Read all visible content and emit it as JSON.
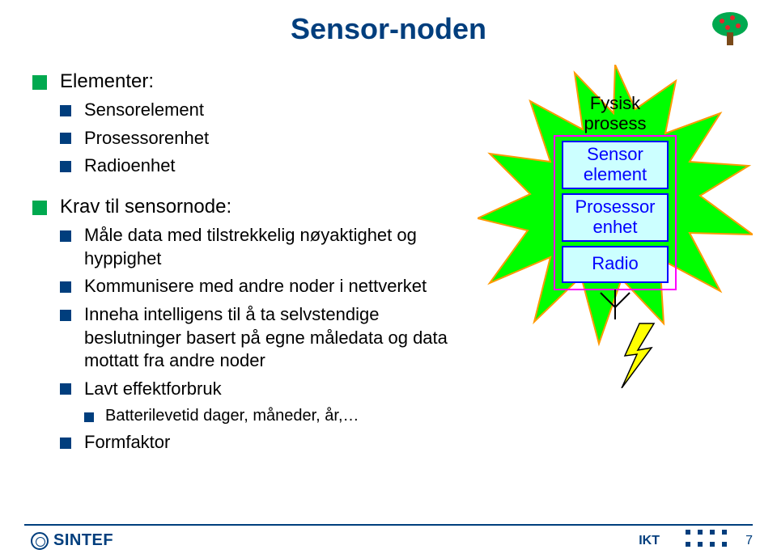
{
  "colors": {
    "title": "#003e7d",
    "bullet_l1": "#00a94f",
    "bullet_l2": "#003e7d",
    "bullet_l3": "#003e7d",
    "body": "#000000",
    "footer_line": "#003e7d",
    "sintef": "#003e7d",
    "ikt": "#003e7d",
    "dots": "#003e7d",
    "pagenum": "#003e7d",
    "star_fill": "#00ff00",
    "star_stroke": "#ff9900",
    "box_stroke": "#ff00ff",
    "cell_fill": "#ccffff",
    "cell_stroke": "#0000ff",
    "cell_text": "#0000ff",
    "fysisk_text": "#000000",
    "bolt_fill": "#ffff00",
    "bolt_stroke": "#000000",
    "tree_canopy": "#00a94f",
    "tree_trunk": "#7a4a1a",
    "apple": "#e8252a"
  },
  "title": "Sensor-noden",
  "bullets": {
    "elementer": "Elementer:",
    "sensorelement": "Sensorelement",
    "prosessorenhet": "Prosessorenhet",
    "radioenhet": "Radioenhet",
    "krav": "Krav til sensornode:",
    "male": "Måle data med tilstrekkelig nøyaktighet og hyppighet",
    "kommunisere": "Kommunisere med andre noder i nettverket",
    "inneha": "Inneha intelligens til å ta selvstendige beslutninger basert på egne måledata og data mottatt fra andre noder",
    "lavt": "Lavt effektforbruk",
    "batteri": "Batterilevetid dager, måneder, år,…",
    "formfaktor": "Formfaktor"
  },
  "diagram": {
    "fysisk_l1": "Fysisk",
    "fysisk_l2": "prosess",
    "sensor_l1": "Sensor",
    "sensor_l2": "element",
    "prosessor_l1": "Prosessor",
    "prosessor_l2": "enhet",
    "radio": "Radio"
  },
  "footer": {
    "sintef": "SINTEF",
    "ikt": "IKT",
    "page": "7"
  }
}
